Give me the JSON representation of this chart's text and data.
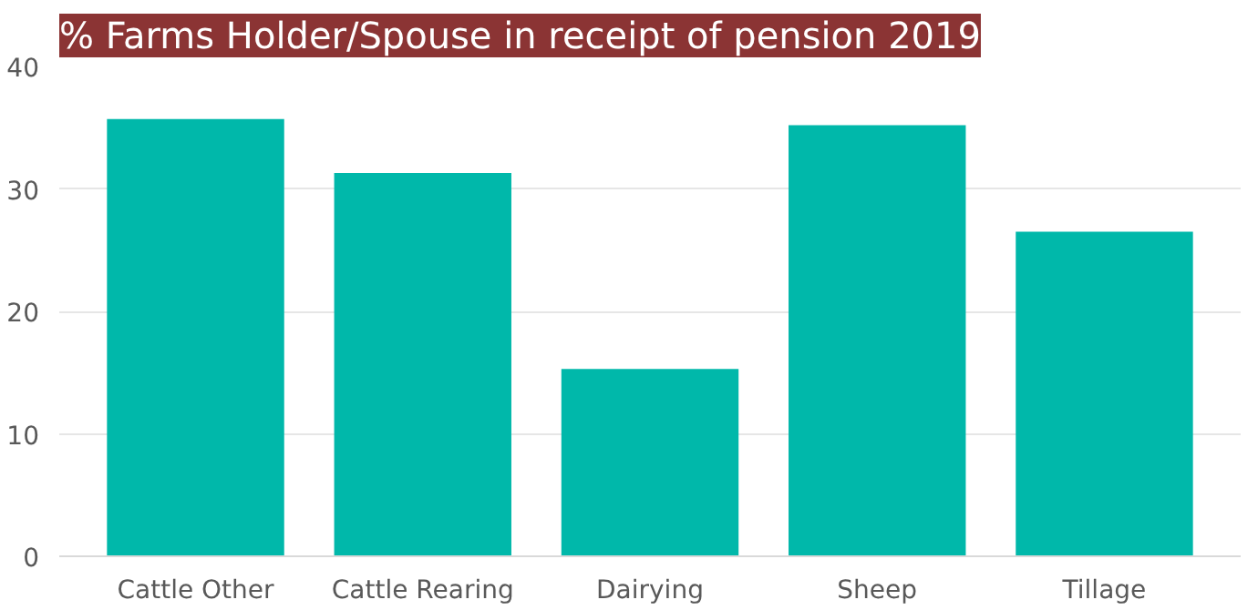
{
  "chart_data": {
    "type": "bar",
    "title": "% Farms Holder/Spouse in receipt of pension 2019",
    "categories": [
      "Cattle Other",
      "Cattle Rearing",
      "Dairying",
      "Sheep",
      "Tillage"
    ],
    "values": [
      35.7,
      31.3,
      15.3,
      35.2,
      26.5
    ],
    "color": "#00b8aa",
    "ylim": [
      0,
      40
    ],
    "yticks": [
      0,
      10,
      20,
      30,
      40
    ],
    "grid": "y"
  }
}
